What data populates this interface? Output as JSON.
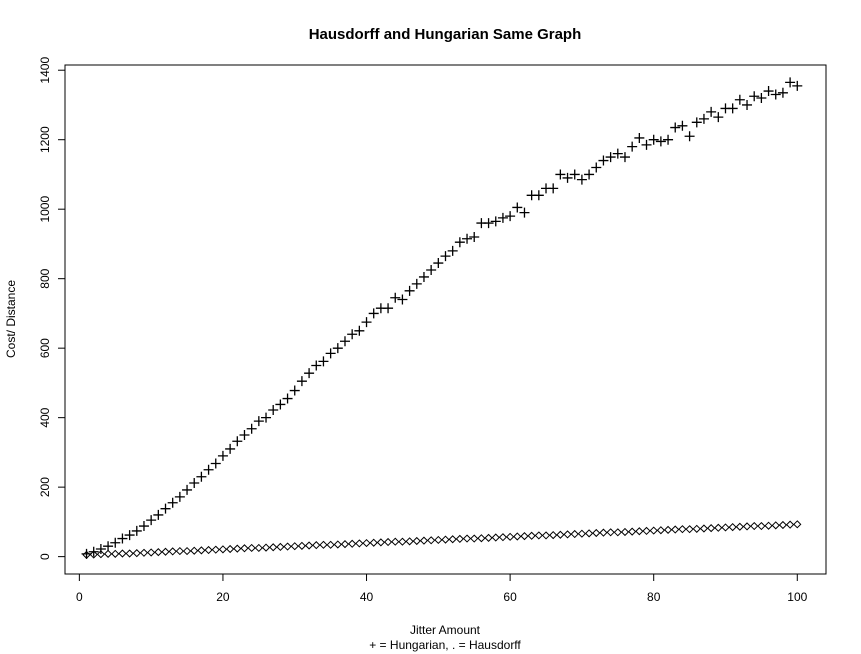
{
  "chart_data": {
    "type": "scatter",
    "title": "Hausdorff and Hungarian Same Graph",
    "xlabel": "Jitter Amount",
    "xlabel2": "+ = Hungarian, . = Hausdorff",
    "ylabel": "Cost/ Distance",
    "xlim": [
      -2,
      104
    ],
    "ylim": [
      -50,
      1415
    ],
    "xticks": [
      0,
      20,
      40,
      60,
      80,
      100
    ],
    "yticks": [
      0,
      200,
      400,
      600,
      800,
      1000,
      1200,
      1400
    ],
    "grid": false,
    "series": [
      {
        "marker": "plus",
        "x": [
          1,
          2,
          3,
          4,
          5,
          6,
          7,
          8,
          9,
          10,
          11,
          12,
          13,
          14,
          15,
          16,
          17,
          18,
          19,
          20,
          21,
          22,
          23,
          24,
          25,
          26,
          27,
          28,
          29,
          30,
          31,
          32,
          33,
          34,
          35,
          36,
          37,
          38,
          39,
          40,
          41,
          42,
          43,
          44,
          45,
          46,
          47,
          48,
          49,
          50,
          51,
          52,
          53,
          54,
          55,
          56,
          57,
          58,
          59,
          60,
          61,
          62,
          63,
          64,
          65,
          66,
          67,
          68,
          69,
          70,
          71,
          72,
          73,
          74,
          75,
          76,
          77,
          78,
          79,
          80,
          81,
          82,
          83,
          84,
          85,
          86,
          87,
          88,
          89,
          90,
          91,
          92,
          93,
          94,
          95,
          96,
          97,
          98,
          99,
          100
        ],
        "y": [
          8,
          14,
          22,
          30,
          40,
          52,
          62,
          74,
          88,
          105,
          120,
          138,
          155,
          172,
          192,
          212,
          230,
          250,
          268,
          290,
          310,
          332,
          350,
          368,
          390,
          400,
          422,
          438,
          455,
          478,
          505,
          528,
          550,
          562,
          585,
          600,
          620,
          640,
          650,
          675,
          700,
          715,
          715,
          745,
          740,
          765,
          785,
          805,
          825,
          845,
          865,
          880,
          905,
          915,
          920,
          960,
          960,
          965,
          975,
          980,
          1005,
          990,
          1040,
          1040,
          1060,
          1060,
          1100,
          1090,
          1100,
          1085,
          1100,
          1120,
          1140,
          1150,
          1160,
          1150,
          1180,
          1205,
          1185,
          1200,
          1195,
          1200,
          1235,
          1240,
          1210,
          1250,
          1260,
          1280,
          1265,
          1290,
          1290,
          1315,
          1300,
          1325,
          1320,
          1340,
          1330,
          1335,
          1365,
          1355
        ]
      },
      {
        "marker": "diamond",
        "x": [
          1,
          2,
          3,
          4,
          5,
          6,
          7,
          8,
          9,
          10,
          11,
          12,
          13,
          14,
          15,
          16,
          17,
          18,
          19,
          20,
          21,
          22,
          23,
          24,
          25,
          26,
          27,
          28,
          29,
          30,
          31,
          32,
          33,
          34,
          35,
          36,
          37,
          38,
          39,
          40,
          41,
          42,
          43,
          44,
          45,
          46,
          47,
          48,
          49,
          50,
          51,
          52,
          53,
          54,
          55,
          56,
          57,
          58,
          59,
          60,
          61,
          62,
          63,
          64,
          65,
          66,
          67,
          68,
          69,
          70,
          71,
          72,
          73,
          74,
          75,
          76,
          77,
          78,
          79,
          80,
          81,
          82,
          83,
          84,
          85,
          86,
          87,
          88,
          89,
          90,
          91,
          92,
          93,
          94,
          95,
          96,
          97,
          98,
          99,
          100
        ],
        "y": [
          5,
          6,
          7,
          8,
          8,
          9,
          9,
          10,
          11,
          12,
          13,
          14,
          15,
          16,
          16,
          17,
          18,
          19,
          20,
          21,
          22,
          23,
          24,
          25,
          25,
          26,
          27,
          28,
          29,
          30,
          31,
          32,
          33,
          34,
          34,
          35,
          36,
          37,
          38,
          39,
          40,
          41,
          42,
          43,
          43,
          44,
          45,
          46,
          47,
          48,
          49,
          50,
          51,
          52,
          52,
          53,
          54,
          55,
          56,
          57,
          58,
          59,
          60,
          61,
          61,
          62,
          63,
          64,
          65,
          66,
          67,
          68,
          69,
          70,
          70,
          71,
          72,
          73,
          74,
          75,
          76,
          77,
          78,
          79,
          79,
          80,
          81,
          82,
          83,
          84,
          85,
          86,
          87,
          88,
          88,
          89,
          90,
          91,
          92,
          93
        ]
      }
    ]
  }
}
